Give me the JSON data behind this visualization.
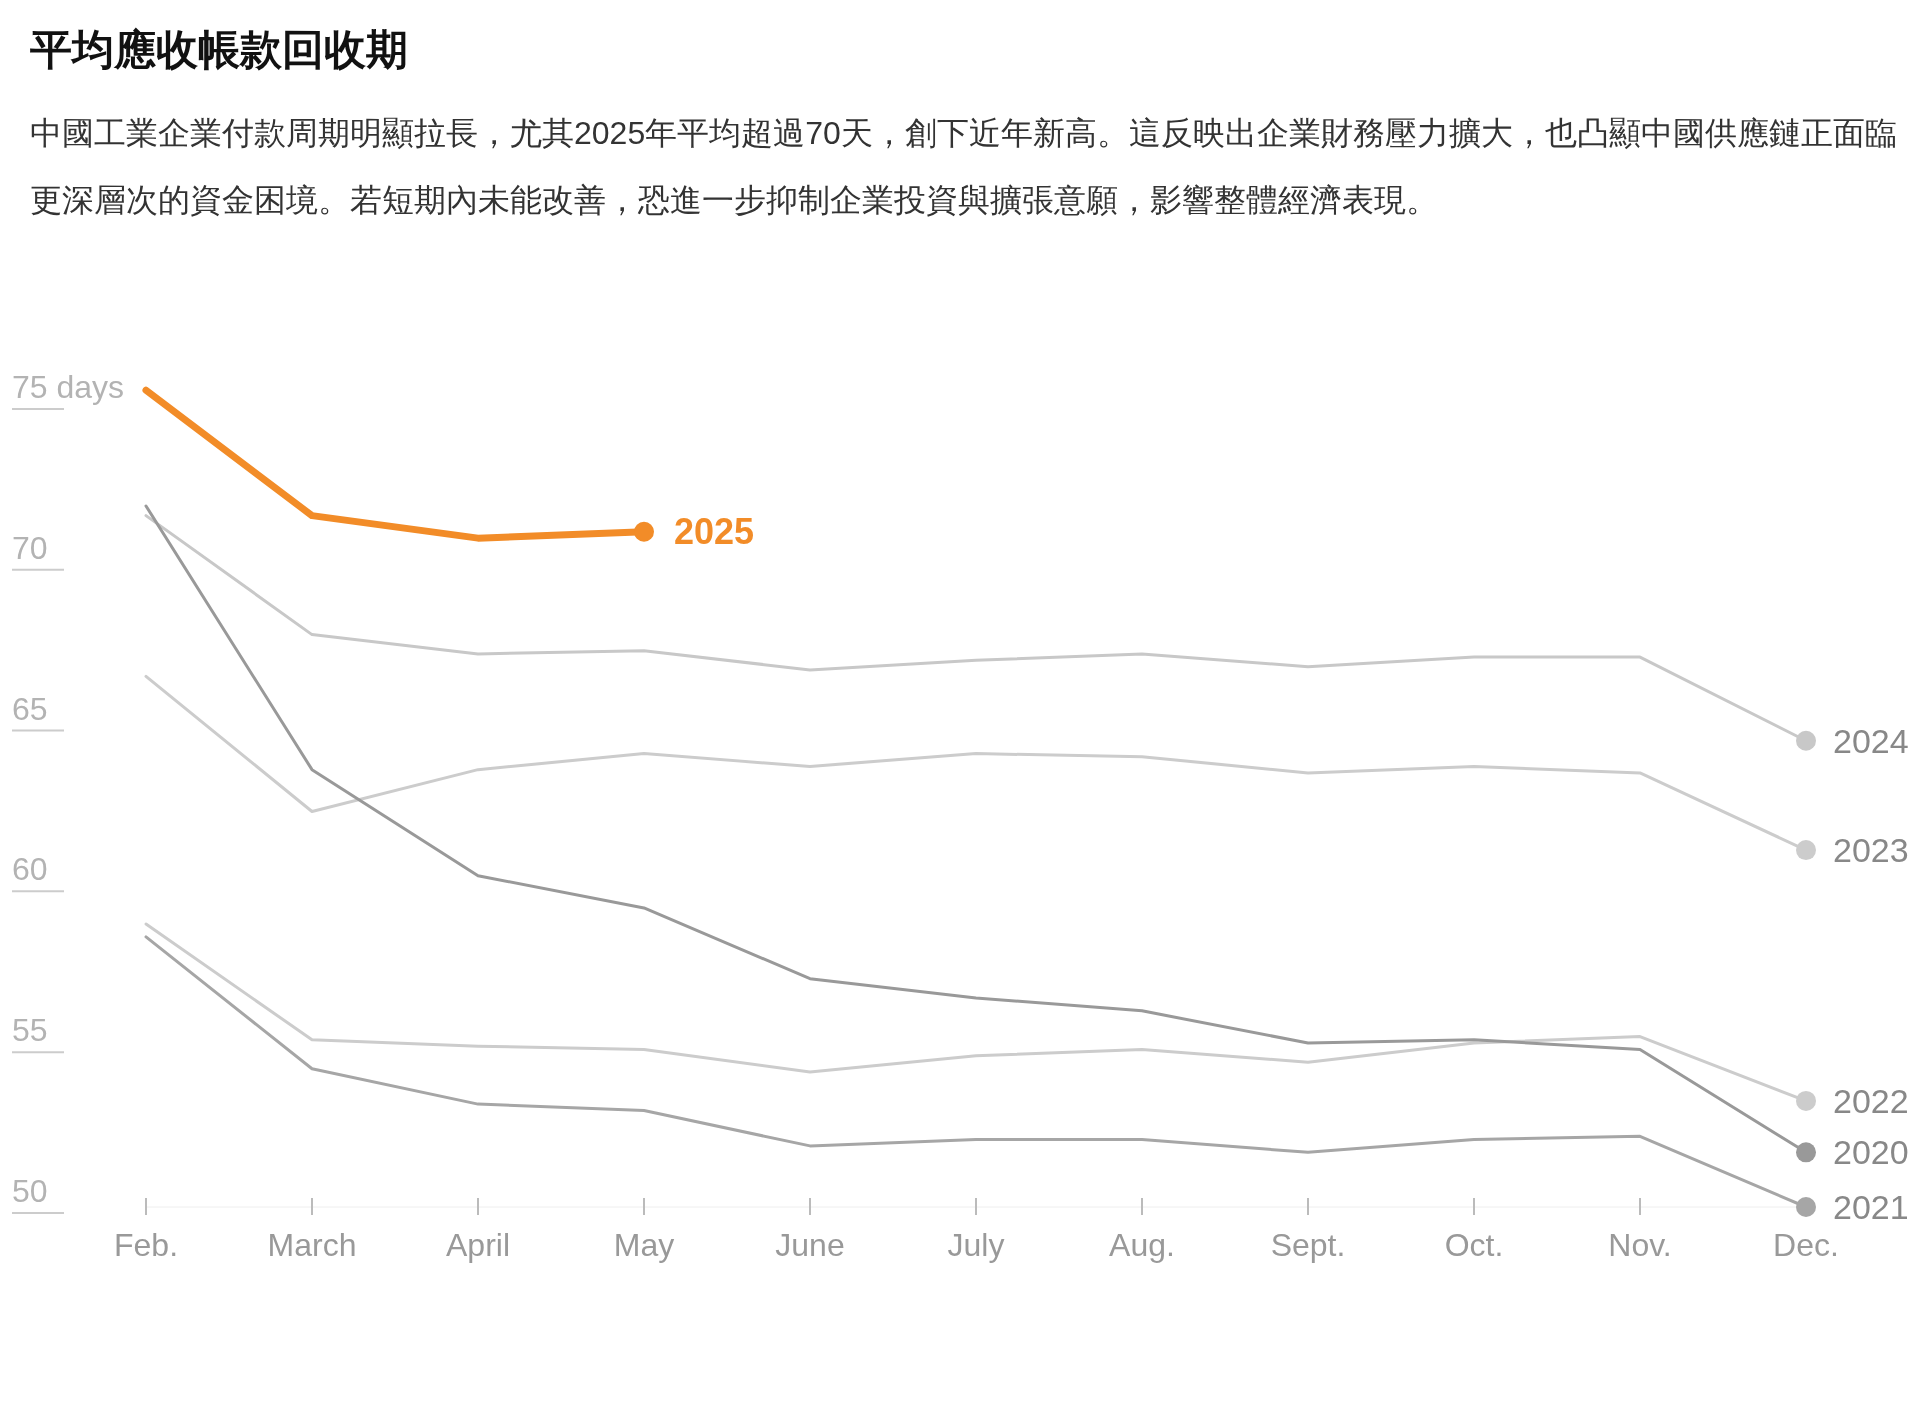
{
  "chart_data": {
    "type": "line",
    "title": "平均應收帳款回收期",
    "subtitle": "中國工業企業付款周期明顯拉長，尤其2025年平均超過70天，創下近年新高。這反映出企業財務壓力擴大，也凸顯中國供應鏈正面臨更深層次的資金困境。若短期內未能改善，恐進一步抑制企業投資與擴張意願，影響整體經濟表現。",
    "categories": [
      "Feb.",
      "March",
      "April",
      "May",
      "June",
      "July",
      "Aug.",
      "Sept.",
      "Oct.",
      "Nov.",
      "Dec."
    ],
    "ylim": [
      49.5,
      75
    ],
    "yticks": [
      50,
      55,
      60,
      65,
      70,
      {
        "value": 75,
        "label": "75 days"
      }
    ],
    "grid": false,
    "legend": "right",
    "series": [
      {
        "name": "2021",
        "color": "#a6a6a6",
        "values": [
          57.9,
          53.8,
          52.7,
          52.5,
          51.4,
          51.6,
          51.6,
          51.2,
          51.6,
          51.7,
          49.5
        ]
      },
      {
        "name": "2022",
        "color": "#cccccc",
        "values": [
          58.3,
          54.7,
          54.5,
          54.4,
          53.7,
          54.2,
          54.4,
          54.0,
          54.6,
          54.8,
          52.8
        ]
      },
      {
        "name": "2023",
        "color": "#cccccc",
        "values": [
          66.0,
          61.8,
          63.1,
          63.6,
          63.2,
          63.6,
          63.5,
          63.0,
          63.2,
          63.0,
          60.6
        ]
      },
      {
        "name": "2024",
        "color": "#c8c8c8",
        "values": [
          71.0,
          67.3,
          66.7,
          66.8,
          66.2,
          66.5,
          66.7,
          66.3,
          66.6,
          66.6,
          64.0
        ]
      },
      {
        "name": "2020",
        "color": "#999999",
        "values": [
          71.3,
          63.1,
          59.8,
          58.8,
          56.6,
          56.0,
          55.6,
          54.6,
          54.7,
          54.4,
          51.2
        ]
      },
      {
        "name": "2025",
        "color": "#f28c28",
        "values": [
          74.9,
          71.0,
          70.3,
          70.5,
          null,
          null,
          null,
          null,
          null,
          null,
          null
        ]
      }
    ]
  }
}
